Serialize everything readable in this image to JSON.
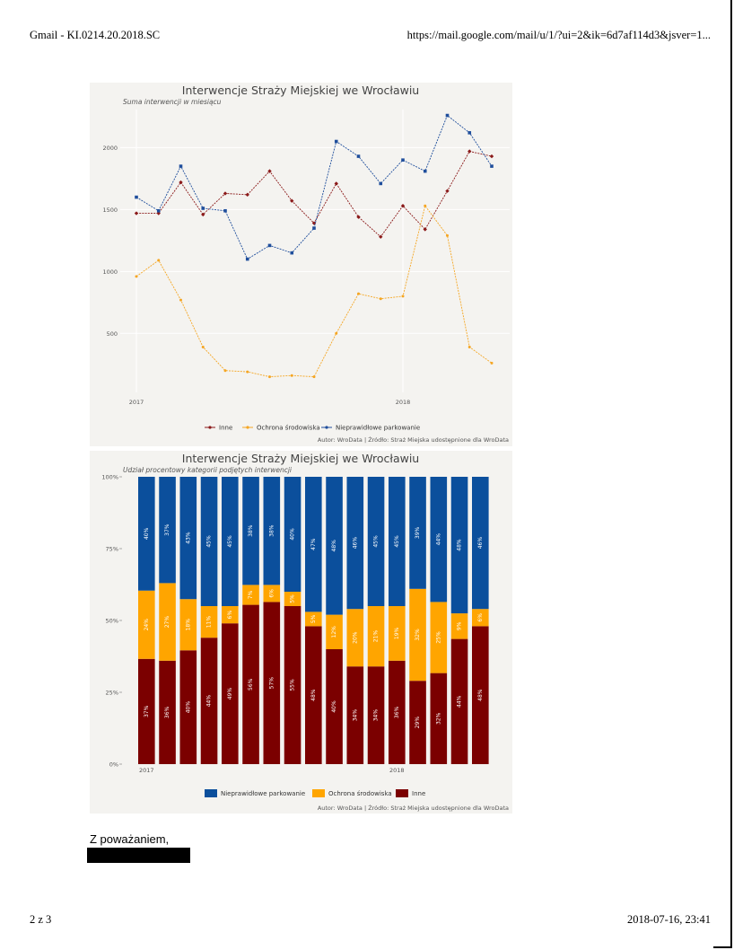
{
  "page_header": {
    "left": "Gmail - KI.0214.20.2018.SC",
    "right": "https://mail.google.com/mail/u/1/?ui=2&ik=6d7af114d3&jsver=1..."
  },
  "page_footer": {
    "left": "2 z 3",
    "right": "2018-07-16, 23:41"
  },
  "email": {
    "signoff": "Z poważaniem,"
  },
  "chart_data": [
    {
      "type": "line",
      "title": "Interwencje Straży Miejskiej we Wrocławiu",
      "subtitle": "Suma interwencji w miesiącu",
      "caption": "Autor: WroData | Źródło: Straż Miejska udostępnione dla WroData",
      "x_tick_labels": [
        "2017",
        "2018"
      ],
      "y_ticks": [
        500,
        1000,
        1500,
        2000
      ],
      "ylim": [
        60,
        2380
      ],
      "grid": true,
      "legend_position": "bottom",
      "series": [
        {
          "name": "Inne",
          "color": "#8b1a1a",
          "marker": "diamond",
          "values": [
            1470,
            1470,
            1720,
            1460,
            1630,
            1620,
            1810,
            1570,
            1390,
            1710,
            1440,
            1280,
            1530,
            1340,
            1650,
            1970,
            1930
          ]
        },
        {
          "name": "Ochrona środowiska",
          "color": "#f5a623",
          "marker": "dot",
          "values": [
            960,
            1090,
            770,
            390,
            200,
            190,
            150,
            160,
            150,
            500,
            820,
            780,
            800,
            1530,
            1290,
            390,
            260
          ]
        },
        {
          "name": "Nieprawidłowe parkowanie",
          "color": "#1f4e9c",
          "marker": "square",
          "values": [
            1600,
            1490,
            1850,
            1510,
            1490,
            1100,
            1210,
            1150,
            1350,
            2050,
            1930,
            1710,
            1900,
            1810,
            2260,
            2120,
            1850
          ]
        }
      ]
    },
    {
      "type": "bar",
      "stacked": true,
      "title": "Interwencje Straży Miejskiej we Wrocławiu",
      "subtitle": "Udział procentowy kategorii podjętych interwencji",
      "caption": "Autor: WroData | Źródło: Straż Miejska udostępnione dla WroData",
      "x_tick_labels": [
        "2017",
        "2018"
      ],
      "y_ticks": [
        "0%",
        "25%",
        "50%",
        "75%",
        "100%"
      ],
      "legend_position": "bottom",
      "series": [
        {
          "name": "Nieprawidłowe parkowanie",
          "color": "#0b4f9c",
          "values": [
            40,
            37,
            43,
            45,
            45,
            38,
            38,
            40,
            47,
            48,
            46,
            45,
            45,
            39,
            44,
            48,
            46
          ],
          "labels": [
            "40%",
            "37%",
            "43%",
            "45%",
            "45%",
            "38%",
            "38%",
            "40%",
            "47%",
            "48%",
            "46%",
            "45%",
            "45%",
            "39%",
            "44%",
            "48%",
            "46%"
          ]
        },
        {
          "name": "Ochrona środowiska",
          "color": "#ffa500",
          "values": [
            24,
            27,
            18,
            11,
            6,
            7,
            6,
            5,
            5,
            12,
            20,
            21,
            19,
            32,
            25,
            9,
            6
          ],
          "labels": [
            "24%",
            "27%",
            "18%",
            "11%",
            "6%",
            "7%",
            "6%",
            "5%",
            "5%",
            "12%",
            "20%",
            "21%",
            "19%",
            "32%",
            "25%",
            "9%",
            "6%"
          ]
        },
        {
          "name": "Inne",
          "color": "#7b0000",
          "values": [
            37,
            36,
            40,
            44,
            49,
            56,
            57,
            55,
            48,
            40,
            34,
            34,
            36,
            29,
            32,
            44,
            48
          ],
          "labels": [
            "37%",
            "36%",
            "40%",
            "44%",
            "49%",
            "56%",
            "57%",
            "55%",
            "48%",
            "40%",
            "34%",
            "34%",
            "36%",
            "29%",
            "32%",
            "44%",
            "48%"
          ]
        }
      ]
    }
  ]
}
